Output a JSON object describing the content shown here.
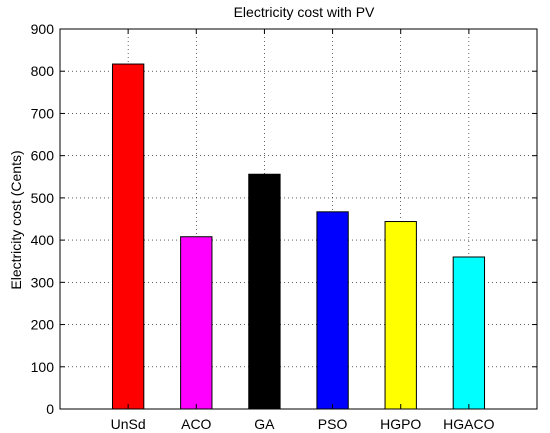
{
  "chart_data": {
    "type": "bar",
    "title": "Electricity cost with PV",
    "xlabel": "",
    "ylabel": "Electricity cost (Cents)",
    "categories": [
      "UnSd",
      "ACO",
      "GA",
      "PSO",
      "HGPO",
      "HGACO"
    ],
    "values": [
      817,
      408,
      556,
      467,
      444,
      360
    ],
    "colors": [
      "#ff0000",
      "#ff00ff",
      "#000000",
      "#0000ff",
      "#ffff00",
      "#00ffff"
    ],
    "ylim": [
      0,
      900
    ],
    "yticks": [
      0,
      100,
      200,
      300,
      400,
      500,
      600,
      700,
      800,
      900
    ],
    "grid": true
  }
}
